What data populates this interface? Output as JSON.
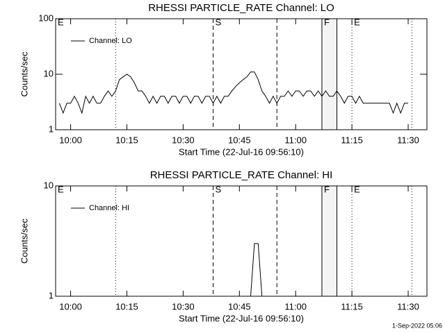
{
  "footer": "1-Sep-2022 05:06",
  "chart_data": [
    {
      "type": "line",
      "title": "RHESSI PARTICLE_RATE Channel: LO",
      "xlabel": "Start Time (22-Jul-16 09:56:10)",
      "ylabel": "Counts/sec",
      "log_y": true,
      "ylim": [
        1,
        100
      ],
      "yticks": [
        1,
        10,
        100
      ],
      "xlim": [
        "09:56",
        "11:35"
      ],
      "xticks": [
        "10:00",
        "10:15",
        "10:30",
        "10:45",
        "11:00",
        "11:15",
        "11:30"
      ],
      "legend": "top-left",
      "shaded_span": [
        "11:07",
        "11:11"
      ],
      "markers": [
        {
          "x": "09:56",
          "label": "E",
          "style": "solid"
        },
        {
          "x": "10:12",
          "label": "",
          "style": "dotted"
        },
        {
          "x": "10:38",
          "label": "S",
          "style": "dashed"
        },
        {
          "x": "10:55",
          "label": "",
          "style": "dashed"
        },
        {
          "x": "11:07",
          "label": "F",
          "style": "solid"
        },
        {
          "x": "11:11",
          "label": "",
          "style": "solid"
        },
        {
          "x": "11:15",
          "label": "E",
          "style": "dotted"
        },
        {
          "x": "11:31",
          "label": "",
          "style": "dotted"
        }
      ],
      "series": [
        {
          "name": "Channel: LO",
          "color": "#000000",
          "x": [
            "09:57",
            "09:58",
            "09:59",
            "10:00",
            "10:01",
            "10:02",
            "10:03",
            "10:04",
            "10:05",
            "10:06",
            "10:07",
            "10:08",
            "10:09",
            "10:10",
            "10:11",
            "10:12",
            "10:13",
            "10:14",
            "10:15",
            "10:16",
            "10:17",
            "10:18",
            "10:19",
            "10:20",
            "10:21",
            "10:22",
            "10:23",
            "10:24",
            "10:25",
            "10:26",
            "10:27",
            "10:28",
            "10:29",
            "10:30",
            "10:31",
            "10:32",
            "10:33",
            "10:34",
            "10:35",
            "10:36",
            "10:37",
            "10:38",
            "10:39",
            "10:40",
            "10:41",
            "10:42",
            "10:43",
            "10:44",
            "10:45",
            "10:46",
            "10:47",
            "10:48",
            "10:49",
            "10:50",
            "10:51",
            "10:52",
            "10:53",
            "10:54",
            "10:55",
            "10:56",
            "10:57",
            "10:58",
            "10:59",
            "11:00",
            "11:01",
            "11:02",
            "11:03",
            "11:04",
            "11:05",
            "11:06",
            "11:07",
            "11:08",
            "11:09",
            "11:10",
            "11:11",
            "11:12",
            "11:13",
            "11:14",
            "11:15",
            "11:16",
            "11:17",
            "11:18",
            "11:19",
            "11:20",
            "11:21",
            "11:22",
            "11:23",
            "11:24",
            "11:25",
            "11:26",
            "11:27",
            "11:28",
            "11:29",
            "11:30"
          ],
          "values": [
            3,
            2,
            3,
            3,
            4,
            3,
            2,
            4,
            3,
            4,
            3,
            3,
            4,
            5,
            4,
            5,
            8,
            9,
            10,
            9,
            7,
            5,
            5,
            4,
            3,
            4,
            3,
            4,
            4,
            3,
            4,
            4,
            3,
            4,
            4,
            3,
            4,
            4,
            3,
            4,
            4,
            3,
            4,
            3,
            4,
            4,
            5,
            6,
            7,
            8,
            9,
            11,
            11,
            8,
            5,
            4,
            3,
            4,
            3,
            4,
            4,
            5,
            4,
            5,
            5,
            4,
            5,
            5,
            4,
            5,
            4,
            5,
            4,
            4,
            5,
            4,
            3,
            4,
            4,
            3,
            4,
            3,
            3,
            3,
            3,
            3,
            3,
            3,
            3,
            2,
            3,
            2,
            3,
            3
          ]
        }
      ]
    },
    {
      "type": "line",
      "title": "RHESSI PARTICLE_RATE Channel: HI",
      "xlabel": "Start Time (22-Jul-16 09:56:10)",
      "ylabel": "Counts/sec",
      "log_y": true,
      "ylim": [
        1,
        10
      ],
      "yticks": [
        1,
        10
      ],
      "xlim": [
        "09:56",
        "11:35"
      ],
      "xticks": [
        "10:00",
        "10:15",
        "10:30",
        "10:45",
        "11:00",
        "11:15",
        "11:30"
      ],
      "legend": "top-left",
      "shaded_span": [
        "11:07",
        "11:11"
      ],
      "markers": [
        {
          "x": "09:56",
          "label": "E",
          "style": "solid"
        },
        {
          "x": "10:12",
          "label": "",
          "style": "dotted"
        },
        {
          "x": "10:38",
          "label": "S",
          "style": "dashed"
        },
        {
          "x": "10:55",
          "label": "",
          "style": "dashed"
        },
        {
          "x": "11:07",
          "label": "F",
          "style": "solid"
        },
        {
          "x": "11:11",
          "label": "",
          "style": "solid"
        },
        {
          "x": "11:15",
          "label": "E",
          "style": "dotted"
        },
        {
          "x": "11:31",
          "label": "",
          "style": "dotted"
        }
      ],
      "series": [
        {
          "name": "Channel: HI",
          "color": "#000000",
          "x": [
            "10:48",
            "10:49",
            "10:50",
            "10:51"
          ],
          "values": [
            1,
            3,
            3,
            1
          ]
        }
      ]
    }
  ]
}
